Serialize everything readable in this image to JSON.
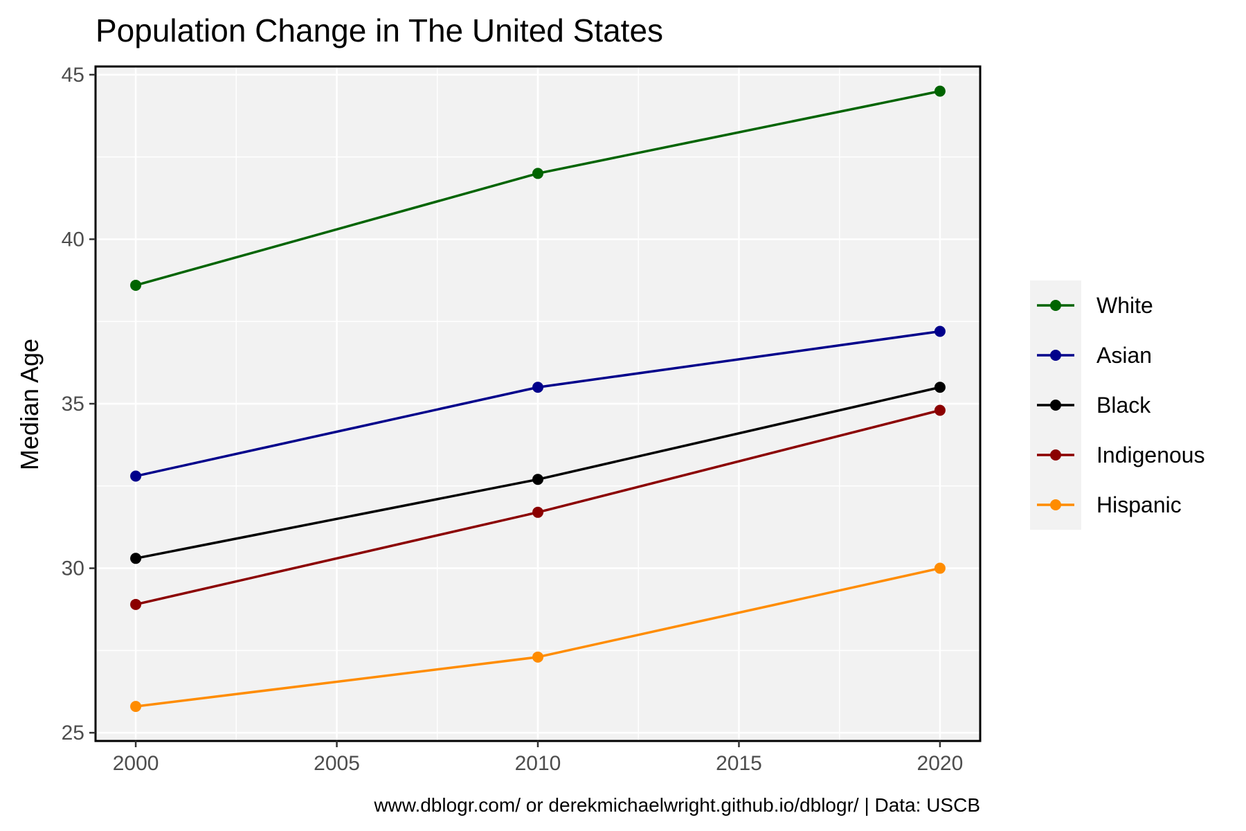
{
  "chart_data": {
    "type": "line",
    "title": "Population Change in The United States",
    "xlabel": "",
    "ylabel": "Median Age",
    "caption": "www.dblogr.com/ or derekmichaelwright.github.io/dblogr/ | Data: USCB",
    "x": [
      2000,
      2010,
      2020
    ],
    "xlim": [
      1999,
      2021
    ],
    "ylim": [
      25,
      45
    ],
    "xticks": [
      2000,
      2005,
      2010,
      2015,
      2020
    ],
    "yticks": [
      25,
      30,
      35,
      40,
      45
    ],
    "xtick_labels": [
      "2000",
      "2005",
      "2010",
      "2015",
      "2020"
    ],
    "ytick_labels": [
      "25",
      "30",
      "35",
      "40",
      "45"
    ],
    "grid": true,
    "legend_position": "right",
    "series": [
      {
        "name": "White",
        "color": "#006400",
        "values": [
          38.6,
          42.0,
          44.5
        ]
      },
      {
        "name": "Asian",
        "color": "#00008b",
        "values": [
          32.8,
          35.5,
          37.2
        ]
      },
      {
        "name": "Black",
        "color": "#000000",
        "values": [
          30.3,
          32.7,
          35.5
        ]
      },
      {
        "name": "Indigenous",
        "color": "#8b0000",
        "values": [
          28.9,
          31.7,
          34.8
        ]
      },
      {
        "name": "Hispanic",
        "color": "#ff8c00",
        "values": [
          25.8,
          27.3,
          30.0
        ]
      }
    ]
  }
}
